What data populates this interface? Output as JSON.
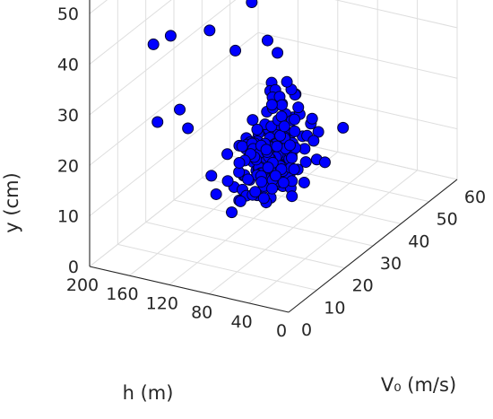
{
  "chart_data": {
    "type": "scatter",
    "dimensions": "3d",
    "xlabel": "h (m)",
    "ylabel": "V₀ (m/s)",
    "zlabel": "y (cm)",
    "xlim": [
      0,
      200
    ],
    "ylim": [
      0,
      60
    ],
    "zlim": [
      0,
      55
    ],
    "xticks": [
      "0",
      "40",
      "80",
      "120",
      "160",
      "200"
    ],
    "yticks": [
      "0",
      "10",
      "20",
      "30",
      "40",
      "50",
      "60"
    ],
    "zticks": [
      "0",
      "10",
      "20",
      "30",
      "40",
      "50"
    ],
    "grid": true,
    "marker_color": "#0000ff",
    "marker_edge": "#000030",
    "points": [
      [
        110,
        45,
        57
      ],
      [
        180,
        55,
        51
      ],
      [
        60,
        45,
        54
      ],
      [
        140,
        40,
        50
      ],
      [
        145,
        30,
        50
      ],
      [
        90,
        35,
        47
      ],
      [
        150,
        5,
        44
      ],
      [
        130,
        40,
        42
      ],
      [
        60,
        50,
        42
      ],
      [
        110,
        20,
        38
      ],
      [
        175,
        20,
        38
      ],
      [
        150,
        25,
        38
      ],
      [
        150,
        40,
        37
      ],
      [
        120,
        35,
        33
      ],
      [
        110,
        35,
        31
      ],
      [
        160,
        10,
        26
      ],
      [
        200,
        35,
        12
      ],
      [
        30,
        30,
        22
      ],
      [
        20,
        20,
        20
      ],
      [
        180,
        25,
        21
      ],
      [
        130,
        40,
        22
      ],
      [
        115,
        36,
        23
      ],
      [
        105,
        26,
        20
      ],
      [
        106,
        20,
        16
      ],
      [
        76,
        29,
        22
      ],
      [
        105,
        33,
        9
      ],
      [
        98,
        31,
        20
      ],
      [
        107,
        39,
        16
      ],
      [
        118,
        29,
        20
      ],
      [
        90,
        20,
        11
      ],
      [
        79,
        38,
        10
      ],
      [
        117,
        37,
        14
      ],
      [
        91,
        33,
        10
      ],
      [
        123,
        37,
        22
      ],
      [
        104,
        15,
        20
      ],
      [
        90,
        38,
        9
      ],
      [
        116,
        36,
        21
      ],
      [
        120,
        26,
        16
      ],
      [
        112,
        32,
        10
      ],
      [
        109,
        38,
        24
      ],
      [
        115,
        35,
        22
      ],
      [
        87,
        32,
        5
      ],
      [
        96,
        31,
        17
      ],
      [
        113,
        45,
        10
      ],
      [
        93,
        27,
        25
      ],
      [
        72,
        24,
        23
      ],
      [
        92,
        30,
        11
      ],
      [
        122,
        33,
        11
      ],
      [
        112,
        18,
        13
      ],
      [
        127,
        31,
        12
      ],
      [
        99,
        28,
        14
      ],
      [
        100,
        27,
        17
      ],
      [
        116,
        31,
        14
      ],
      [
        89,
        29,
        22
      ],
      [
        108,
        18,
        7
      ],
      [
        121,
        29,
        8
      ],
      [
        118,
        16,
        11
      ],
      [
        115,
        43,
        19
      ],
      [
        102,
        32,
        7
      ],
      [
        110,
        29,
        11
      ],
      [
        118,
        27,
        16
      ],
      [
        99,
        43,
        14
      ],
      [
        114,
        42,
        15
      ],
      [
        95,
        29,
        10
      ],
      [
        100,
        46,
        11
      ],
      [
        85,
        39,
        13
      ],
      [
        106,
        38,
        6
      ],
      [
        102,
        33,
        10
      ],
      [
        116,
        34,
        16
      ],
      [
        120,
        15,
        15
      ],
      [
        117,
        25,
        8
      ],
      [
        110,
        40,
        13
      ],
      [
        103,
        33,
        18
      ],
      [
        125,
        38,
        13
      ],
      [
        102,
        38,
        11
      ],
      [
        100,
        33,
        22
      ],
      [
        105,
        34,
        23
      ],
      [
        109,
        21,
        8
      ],
      [
        87,
        22,
        9
      ],
      [
        104,
        24,
        8
      ],
      [
        130,
        31,
        15
      ],
      [
        111,
        37,
        20
      ],
      [
        86,
        36,
        6
      ],
      [
        102,
        30,
        19
      ],
      [
        114,
        36,
        6
      ],
      [
        99,
        34,
        13
      ],
      [
        109,
        40,
        11
      ],
      [
        90,
        26,
        9
      ],
      [
        82,
        33,
        21
      ],
      [
        75,
        30,
        24
      ],
      [
        113,
        41,
        21
      ],
      [
        128,
        33,
        11
      ],
      [
        99,
        36,
        11
      ],
      [
        78,
        36,
        19
      ],
      [
        112,
        31,
        10
      ],
      [
        95,
        26,
        16
      ],
      [
        131,
        27,
        7
      ],
      [
        91,
        33,
        6
      ],
      [
        130,
        30,
        8
      ],
      [
        84,
        33,
        10
      ],
      [
        95,
        28,
        13
      ],
      [
        114,
        32,
        18
      ],
      [
        111,
        36,
        8
      ],
      [
        93,
        25,
        17
      ],
      [
        115,
        33,
        20
      ],
      [
        114,
        33,
        12
      ],
      [
        97,
        28,
        6
      ],
      [
        105,
        27,
        15
      ],
      [
        111,
        31,
        12
      ],
      [
        112,
        31,
        6
      ],
      [
        101,
        31,
        8
      ],
      [
        120,
        45,
        18
      ],
      [
        90,
        33,
        12
      ],
      [
        100,
        42,
        12
      ],
      [
        109,
        23,
        15
      ],
      [
        107,
        30,
        10
      ],
      [
        111,
        38,
        13
      ],
      [
        112,
        34,
        10
      ],
      [
        125,
        29,
        14
      ],
      [
        123,
        26,
        16
      ],
      [
        113,
        28,
        16
      ],
      [
        113,
        29,
        16
      ],
      [
        92,
        35,
        13
      ],
      [
        105,
        26,
        11
      ],
      [
        108,
        31,
        7
      ],
      [
        106,
        33,
        14
      ],
      [
        105,
        25,
        15
      ],
      [
        112,
        34,
        5
      ],
      [
        104,
        27,
        11
      ],
      [
        107,
        35,
        5
      ],
      [
        115,
        30,
        10
      ],
      [
        118,
        28,
        16
      ],
      [
        102,
        19,
        9
      ],
      [
        94,
        26,
        13
      ],
      [
        106,
        31,
        12
      ],
      [
        115,
        30,
        17
      ],
      [
        105,
        26,
        7
      ],
      [
        104,
        39,
        14
      ],
      [
        87,
        29,
        9
      ],
      [
        97,
        31,
        8
      ],
      [
        120,
        31,
        15
      ],
      [
        109,
        33,
        21
      ],
      [
        121,
        37,
        11
      ],
      [
        109,
        26,
        16
      ],
      [
        96,
        26,
        6
      ],
      [
        88,
        27,
        17
      ],
      [
        109,
        30,
        14
      ],
      [
        108,
        31,
        11
      ],
      [
        96,
        31,
        11
      ],
      [
        111,
        37,
        7
      ],
      [
        107,
        33,
        14
      ],
      [
        95,
        24,
        11
      ],
      [
        104,
        28,
        8
      ],
      [
        104,
        28,
        10
      ],
      [
        89,
        32,
        15
      ],
      [
        113,
        33,
        13
      ],
      [
        112,
        33,
        15
      ],
      [
        103,
        22,
        12
      ],
      [
        97,
        28,
        16
      ],
      [
        110,
        26,
        17
      ],
      [
        107,
        39,
        9
      ],
      [
        113,
        39,
        17
      ],
      [
        119,
        33,
        13
      ],
      [
        101,
        36,
        10
      ],
      [
        98,
        29,
        9
      ],
      [
        112,
        22,
        13
      ],
      [
        98,
        35,
        12
      ],
      [
        113,
        36,
        11
      ],
      [
        97,
        34,
        8
      ],
      [
        126,
        32,
        10
      ],
      [
        82,
        31,
        11
      ],
      [
        111,
        29,
        13
      ],
      [
        101,
        26,
        17
      ],
      [
        120,
        31,
        9
      ],
      [
        94,
        39,
        11
      ],
      [
        99,
        33,
        6
      ],
      [
        107,
        35,
        11
      ],
      [
        106,
        38,
        9
      ],
      [
        101,
        26,
        11
      ],
      [
        112,
        33,
        12
      ],
      [
        115,
        25,
        11
      ],
      [
        103,
        32,
        12
      ],
      [
        106,
        24,
        16
      ],
      [
        120,
        35,
        15
      ],
      [
        113,
        35,
        11
      ],
      [
        87,
        32,
        8
      ],
      [
        111,
        31,
        14
      ],
      [
        109,
        34,
        13
      ],
      [
        103,
        30,
        15
      ],
      [
        105,
        36,
        13
      ],
      [
        113,
        25,
        7
      ],
      [
        106,
        27,
        12
      ],
      [
        104,
        33,
        12
      ],
      [
        107,
        30,
        12
      ],
      [
        100,
        34,
        15
      ],
      [
        105,
        34,
        15
      ],
      [
        109,
        30,
        15
      ],
      [
        102,
        34,
        14
      ],
      [
        103,
        27,
        11
      ],
      [
        106,
        26,
        14
      ],
      [
        103,
        29,
        8
      ],
      [
        103,
        31,
        10
      ],
      [
        106,
        35,
        9
      ],
      [
        108,
        32,
        9
      ],
      [
        102,
        36,
        9
      ],
      [
        110,
        28,
        15
      ],
      [
        99,
        33,
        9
      ],
      [
        108,
        29,
        8
      ],
      [
        107,
        32,
        11
      ],
      [
        110,
        33,
        11
      ],
      [
        105,
        33,
        12
      ]
    ]
  }
}
